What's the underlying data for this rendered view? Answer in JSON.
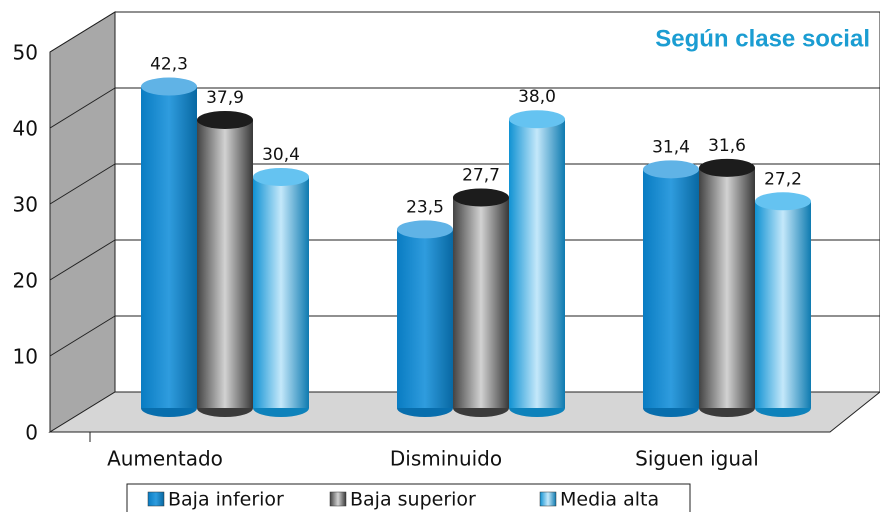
{
  "chart_data": {
    "type": "bar",
    "title": "Según clase social",
    "categories": [
      "Aumentado",
      "Disminuido",
      "Siguen igual"
    ],
    "series": [
      {
        "name": "Baja inferior",
        "color": "#0a8ad8",
        "values": [
          42.3,
          23.5,
          31.4
        ],
        "value_labels": [
          "42,3",
          "23,5",
          "31,4"
        ]
      },
      {
        "name": "Baja superior",
        "color": "#4a4a4a",
        "values": [
          37.9,
          27.7,
          31.6
        ],
        "value_labels": [
          "37,9",
          "27,7",
          "31,6"
        ]
      },
      {
        "name": "Media alta",
        "color": "#12a2ea",
        "values": [
          30.4,
          38.0,
          27.2
        ],
        "value_labels": [
          "30,4",
          "38,0",
          "27,2"
        ]
      }
    ],
    "ylim": [
      0,
      50
    ],
    "yticks": [
      0,
      10,
      20,
      30,
      40,
      50
    ],
    "grid": true,
    "legend": "bottom"
  }
}
